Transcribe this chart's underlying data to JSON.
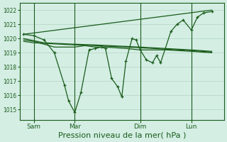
{
  "bg_color": "#d4eee4",
  "grid_color": "#b8d8c8",
  "line_color": "#1a5c1a",
  "xlabel": "Pression niveau de la mer( hPa )",
  "xlabel_fontsize": 8,
  "yticks": [
    1015,
    1016,
    1017,
    1018,
    1019,
    1020,
    1021,
    1022
  ],
  "ylim": [
    1014.3,
    1022.5
  ],
  "xtick_labels": [
    "Sam",
    "Mar",
    "Dim",
    "Lun"
  ],
  "xlim": [
    -0.2,
    9.8
  ],
  "vlines": [
    0.5,
    2.5,
    5.7,
    8.2
  ],
  "series1": [
    [
      0.0,
      1020.3
    ],
    [
      0.5,
      1020.2
    ],
    [
      1.0,
      1019.9
    ],
    [
      1.5,
      1019.0
    ],
    [
      2.0,
      1016.7
    ],
    [
      2.2,
      1015.6
    ],
    [
      2.5,
      1014.8
    ],
    [
      2.8,
      1016.2
    ],
    [
      3.2,
      1019.2
    ],
    [
      3.5,
      1019.3
    ],
    [
      3.8,
      1019.4
    ],
    [
      4.0,
      1019.3
    ],
    [
      4.3,
      1017.2
    ],
    [
      4.6,
      1016.6
    ],
    [
      4.8,
      1015.9
    ],
    [
      5.0,
      1018.4
    ],
    [
      5.3,
      1020.0
    ],
    [
      5.5,
      1019.9
    ],
    [
      5.7,
      1019.2
    ],
    [
      6.0,
      1018.5
    ],
    [
      6.3,
      1018.3
    ],
    [
      6.5,
      1018.8
    ],
    [
      6.7,
      1018.3
    ],
    [
      7.2,
      1020.5
    ],
    [
      7.5,
      1021.0
    ],
    [
      7.8,
      1021.3
    ],
    [
      8.2,
      1020.6
    ],
    [
      8.5,
      1021.5
    ],
    [
      8.8,
      1021.8
    ],
    [
      9.2,
      1021.9
    ]
  ],
  "series2": [
    [
      0.0,
      1020.3
    ],
    [
      9.2,
      1022.0
    ]
  ],
  "series3": [
    [
      0.0,
      1019.9
    ],
    [
      0.5,
      1019.8
    ],
    [
      1.0,
      1019.6
    ],
    [
      1.5,
      1019.4
    ],
    [
      2.5,
      1019.4
    ],
    [
      3.0,
      1019.5
    ],
    [
      3.5,
      1019.4
    ],
    [
      4.0,
      1019.4
    ],
    [
      5.0,
      1019.3
    ],
    [
      5.7,
      1019.2
    ],
    [
      6.0,
      1019.2
    ],
    [
      7.0,
      1019.2
    ],
    [
      8.2,
      1019.1
    ],
    [
      9.2,
      1019.0
    ]
  ],
  "series4": [
    [
      0.0,
      1020.0
    ],
    [
      0.5,
      1019.85
    ],
    [
      1.0,
      1019.7
    ],
    [
      2.5,
      1019.6
    ],
    [
      3.5,
      1019.55
    ],
    [
      5.7,
      1019.4
    ],
    [
      8.2,
      1019.2
    ],
    [
      9.2,
      1019.1
    ]
  ],
  "series5": [
    [
      0.0,
      1019.8
    ],
    [
      0.5,
      1019.7
    ],
    [
      2.5,
      1019.55
    ],
    [
      3.5,
      1019.5
    ],
    [
      5.7,
      1019.35
    ],
    [
      8.2,
      1019.15
    ],
    [
      9.2,
      1019.05
    ]
  ],
  "xtick_positions": [
    0.5,
    2.5,
    5.7,
    8.2
  ]
}
